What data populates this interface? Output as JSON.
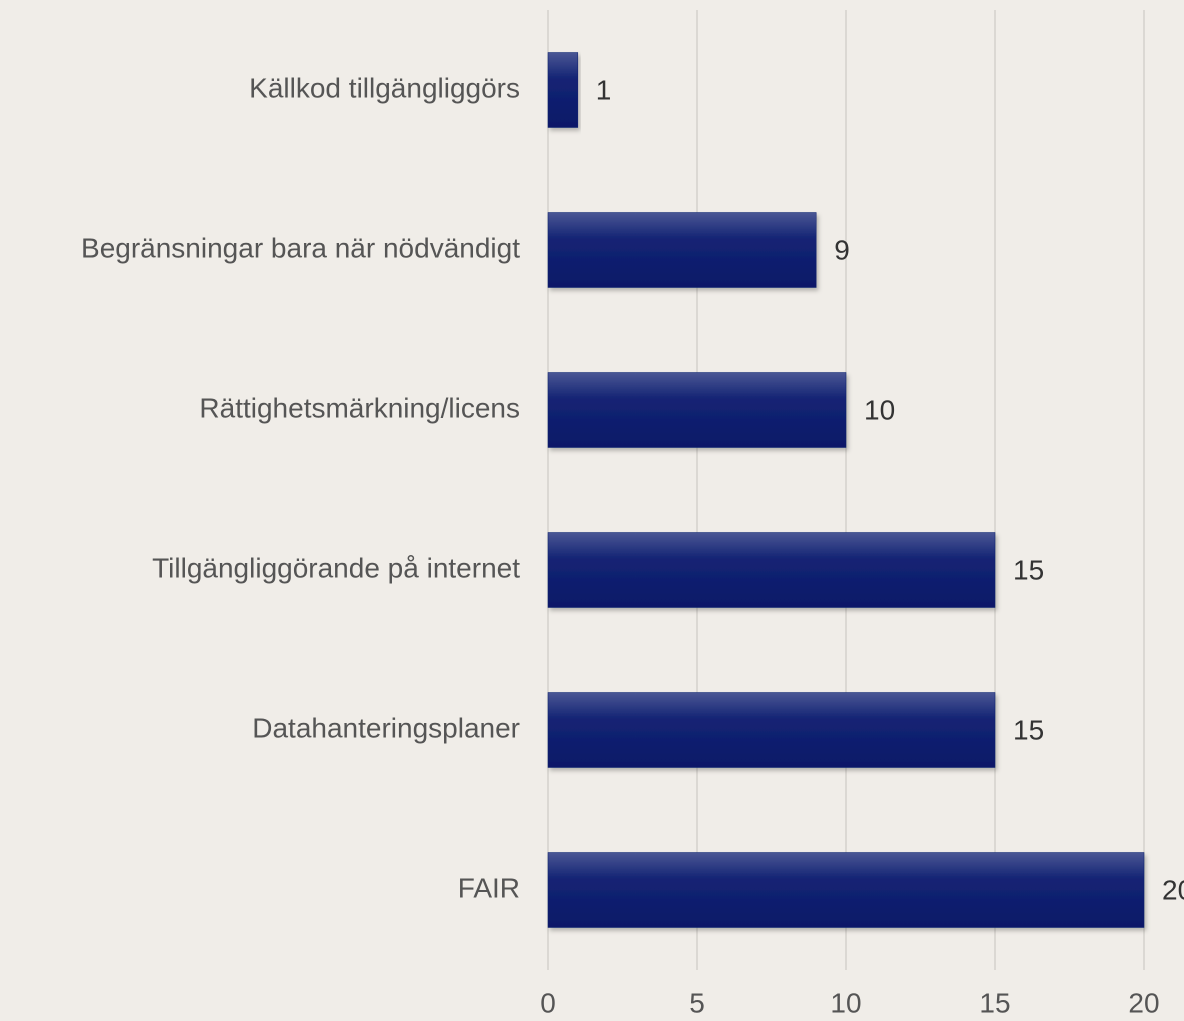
{
  "chart_data": {
    "type": "barh",
    "categories": [
      "Källkod tillgängliggörs",
      "Begränsningar bara när nödvändigt",
      "Rättighetsmärkning/licens",
      "Tillgängliggörande på internet",
      "Datahanteringsplaner",
      "FAIR"
    ],
    "values": [
      1,
      9,
      10,
      15,
      15,
      20
    ],
    "color": "#0d1f6e",
    "xlim": [
      0,
      20
    ],
    "xticks": [
      0,
      5,
      10,
      15,
      20
    ],
    "grid": true
  }
}
